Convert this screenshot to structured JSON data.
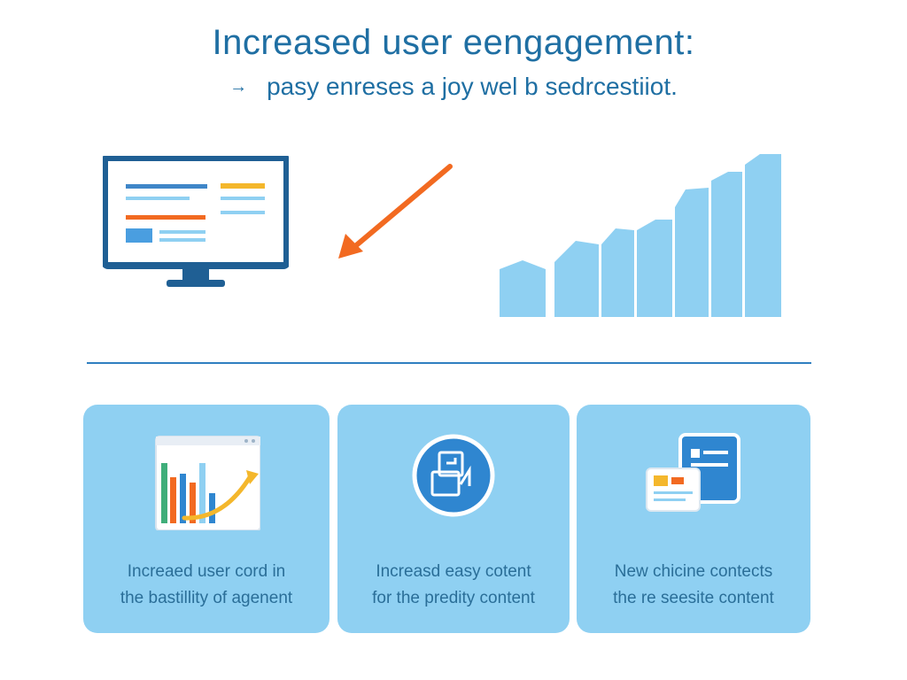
{
  "header": {
    "title": "Increased user eengagement:",
    "subtitle_arrow": "→",
    "subtitle": "pasy enreses a joy wel b sedrcestiiot."
  },
  "illustration": {
    "monitor_icon": "desktop-monitor-icon",
    "arrow_icon": "diagonal-arrow-icon",
    "bar_icon": "rising-bar-chart-icon",
    "colors": {
      "primary": "#1f5f94",
      "arrow": "#f26a21",
      "bars": "#8fd0f2",
      "accent": "#f4b72c"
    }
  },
  "cards": [
    {
      "icon": "chart-window-icon",
      "line1": "Increaed user cord in",
      "line2": "the bastillity of agenent"
    },
    {
      "icon": "content-circle-icon",
      "line1": "Increasd easy cotent",
      "line2": "for the predity content"
    },
    {
      "icon": "documents-icon",
      "line1": "New chicine contects",
      "line2": "the re seesite content"
    }
  ]
}
